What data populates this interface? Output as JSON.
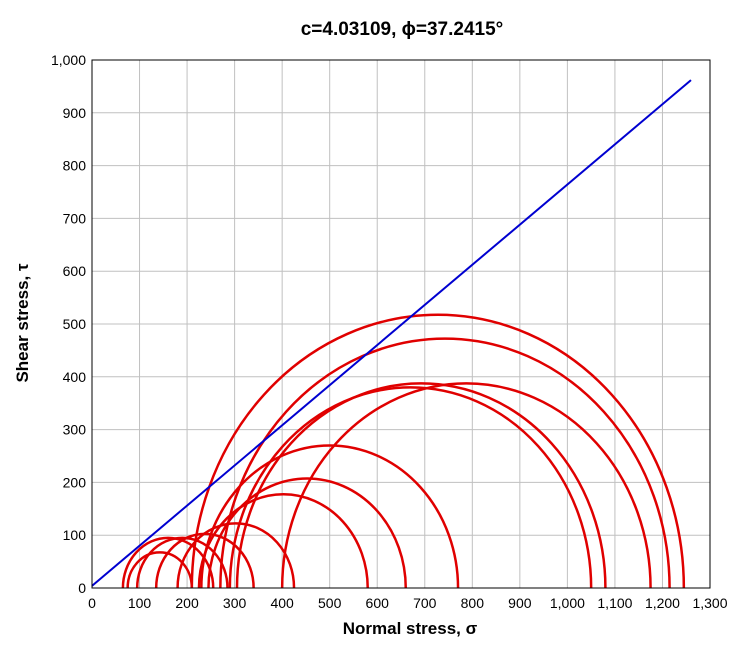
{
  "chart_data": {
    "type": "line",
    "title": "c=4.03109, ϕ=37.2415°",
    "xlabel": "Normal stress, σ",
    "ylabel": "Shear stress, τ",
    "xlim": [
      0,
      1300
    ],
    "ylim": [
      0,
      1000
    ],
    "x_ticks": [
      "0",
      "100",
      "200",
      "300",
      "400",
      "500",
      "600",
      "700",
      "800",
      "900",
      "1,000",
      "1,100",
      "1,200",
      "1,300"
    ],
    "y_ticks": [
      "0",
      "100",
      "200",
      "300",
      "400",
      "500",
      "600",
      "700",
      "800",
      "900",
      "1,000"
    ],
    "grid": true,
    "colors": {
      "circles": "#e00000",
      "envelope": "#0000d0"
    },
    "mohr_circles": [
      {
        "sigma3": 65,
        "sigma1": 255
      },
      {
        "sigma3": 75,
        "sigma1": 210
      },
      {
        "sigma3": 95,
        "sigma1": 285
      },
      {
        "sigma3": 135,
        "sigma1": 340
      },
      {
        "sigma3": 180,
        "sigma1": 425
      },
      {
        "sigma3": 225,
        "sigma1": 580
      },
      {
        "sigma3": 230,
        "sigma1": 770
      },
      {
        "sigma3": 245,
        "sigma1": 660
      },
      {
        "sigma3": 210,
        "sigma1": 1245
      },
      {
        "sigma3": 270,
        "sigma1": 1215
      },
      {
        "sigma3": 290,
        "sigma1": 1050
      },
      {
        "sigma3": 305,
        "sigma1": 1080
      },
      {
        "sigma3": 400,
        "sigma1": 1175
      }
    ],
    "envelope": {
      "cohesion": 4.03109,
      "friction_angle_deg": 37.2415,
      "x": [
        0,
        1260
      ]
    }
  }
}
